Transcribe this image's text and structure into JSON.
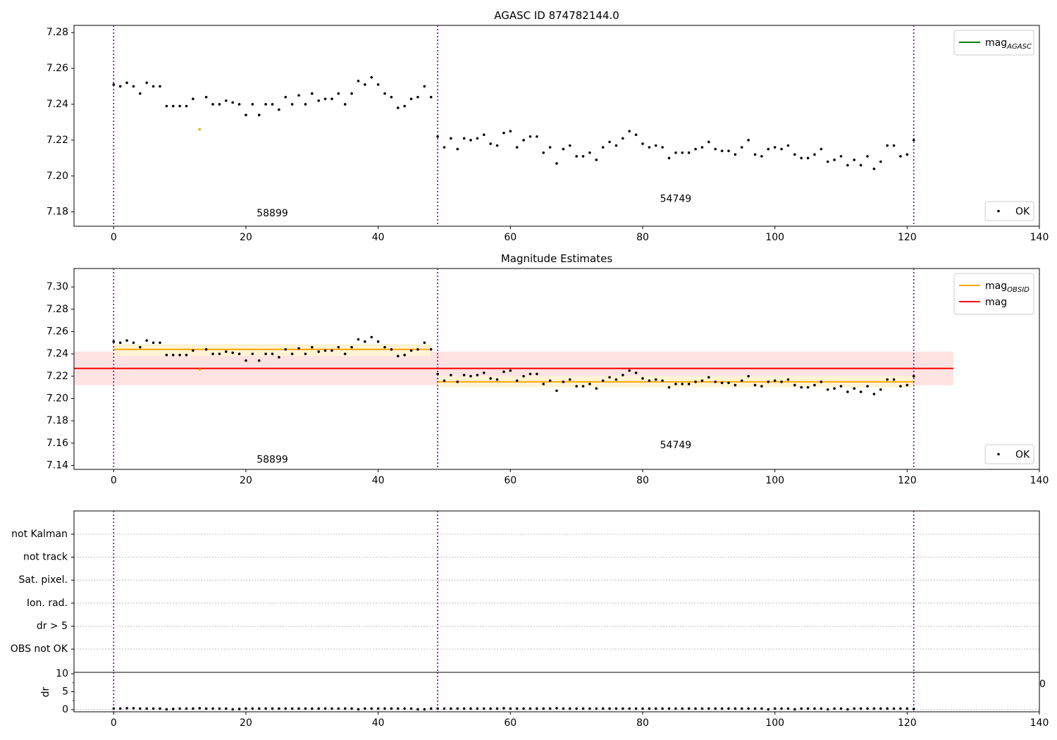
{
  "chart_data": [
    {
      "type": "scatter",
      "title": "AGASC ID 874782144.0",
      "xlim": [
        -6,
        140
      ],
      "ylim": [
        7.172,
        7.284
      ],
      "xticks": [
        "0",
        "20",
        "40",
        "60",
        "80",
        "100",
        "120",
        "140"
      ],
      "yticks": [
        "7.18",
        "7.20",
        "7.22",
        "7.24",
        "7.26",
        "7.28"
      ],
      "vlines": [
        0,
        49,
        121
      ],
      "obsid_labels": [
        {
          "text": "58899",
          "x": 24,
          "y": 7.1775
        },
        {
          "text": "54749",
          "x": 85,
          "y": 7.1855
        }
      ],
      "legend_lines": [
        {
          "base": "mag",
          "sub": "AGASC",
          "color": "#008000"
        }
      ],
      "legend_points": [
        {
          "label": "OK",
          "color": "#000000"
        }
      ],
      "series": [
        {
          "name": "OK",
          "color": "#000000",
          "x": [
            0,
            1,
            2,
            3,
            4,
            5,
            6,
            7,
            8,
            9,
            10,
            11,
            12,
            14,
            15,
            16,
            17,
            18,
            19,
            20,
            21,
            22,
            23,
            24,
            25,
            26,
            27,
            28,
            29,
            30,
            31,
            32,
            33,
            34,
            35,
            36,
            37,
            38,
            39,
            40,
            41,
            42,
            43,
            44,
            45,
            46,
            47,
            48,
            49,
            50,
            51,
            52,
            53,
            54,
            55,
            56,
            57,
            58,
            59,
            60,
            61,
            62,
            63,
            64,
            65,
            66,
            67,
            68,
            69,
            70,
            71,
            72,
            73,
            74,
            75,
            76,
            77,
            78,
            79,
            80,
            81,
            82,
            83,
            84,
            85,
            86,
            87,
            88,
            89,
            90,
            91,
            92,
            93,
            94,
            95,
            96,
            97,
            98,
            99,
            100,
            101,
            102,
            103,
            104,
            105,
            106,
            107,
            108,
            109,
            110,
            111,
            112,
            113,
            114,
            115,
            116,
            117,
            118,
            119,
            120,
            121
          ],
          "y": [
            7.251,
            7.25,
            7.252,
            7.25,
            7.246,
            7.252,
            7.25,
            7.25,
            7.239,
            7.239,
            7.239,
            7.239,
            7.243,
            7.244,
            7.24,
            7.24,
            7.242,
            7.241,
            7.24,
            7.234,
            7.24,
            7.234,
            7.24,
            7.24,
            7.237,
            7.244,
            7.24,
            7.245,
            7.24,
            7.246,
            7.242,
            7.243,
            7.243,
            7.246,
            7.24,
            7.246,
            7.253,
            7.251,
            7.255,
            7.251,
            7.246,
            7.244,
            7.238,
            7.239,
            7.243,
            7.244,
            7.25,
            7.244,
            7.222,
            7.216,
            7.221,
            7.215,
            7.221,
            7.22,
            7.221,
            7.223,
            7.218,
            7.217,
            7.224,
            7.225,
            7.216,
            7.22,
            7.222,
            7.222,
            7.213,
            7.216,
            7.207,
            7.215,
            7.217,
            7.211,
            7.211,
            7.213,
            7.209,
            7.216,
            7.219,
            7.217,
            7.221,
            7.225,
            7.223,
            7.218,
            7.216,
            7.217,
            7.216,
            7.21,
            7.213,
            7.213,
            7.213,
            7.215,
            7.216,
            7.219,
            7.215,
            7.214,
            7.214,
            7.212,
            7.216,
            7.22,
            7.212,
            7.211,
            7.215,
            7.216,
            7.215,
            7.217,
            7.212,
            7.21,
            7.21,
            7.212,
            7.215,
            7.208,
            7.209,
            7.211,
            7.206,
            7.209,
            7.206,
            7.211,
            7.204,
            7.208,
            7.217,
            7.217,
            7.211,
            7.212,
            7.22
          ]
        },
        {
          "name": "",
          "color": "#ffa500",
          "x": [
            13
          ],
          "y": [
            7.226
          ]
        }
      ]
    },
    {
      "type": "scatter",
      "title": "Magnitude Estimates",
      "xlim": [
        -6,
        140
      ],
      "ylim": [
        7.1365,
        7.3165
      ],
      "xticks": [
        "0",
        "20",
        "40",
        "60",
        "80",
        "100",
        "120",
        "140"
      ],
      "yticks": [
        "7.14",
        "7.16",
        "7.18",
        "7.20",
        "7.22",
        "7.24",
        "7.26",
        "7.28",
        "7.30"
      ],
      "vlines": [
        0,
        49,
        121
      ],
      "obsid_labels": [
        {
          "text": "58899",
          "x": 24,
          "y": 7.1425
        },
        {
          "text": "54749",
          "x": 85,
          "y": 7.1555
        }
      ],
      "bands": [
        {
          "x0": -6,
          "x1": 127,
          "y0": 7.212,
          "y1": 7.242,
          "color": "#ffe2e2"
        },
        {
          "x0": 0,
          "x1": 48,
          "y0": 7.238,
          "y1": 7.249,
          "color": "#fff3d6"
        },
        {
          "x0": 49,
          "x1": 121,
          "y0": 7.21,
          "y1": 7.22,
          "color": "#fff3d6"
        }
      ],
      "hlines": [
        {
          "y": 7.227,
          "x0": -6,
          "x1": 127,
          "color": "#ff0000"
        },
        {
          "y": 7.244,
          "x0": 0,
          "x1": 48,
          "color": "#ffa500"
        },
        {
          "y": 7.215,
          "x0": 49,
          "x1": 121,
          "color": "#ffa500"
        }
      ],
      "legend_lines": [
        {
          "base": "mag",
          "sub": "OBSID",
          "color": "#ffa500"
        },
        {
          "base": "mag",
          "sub": "",
          "color": "#ff0000"
        }
      ],
      "legend_points": [
        {
          "label": "OK",
          "color": "#000000"
        }
      ],
      "series": [
        {
          "name": "OK",
          "color": "#000000",
          "same_as_panel": 0
        },
        {
          "name": "",
          "color": "#ffa500",
          "x": [
            13
          ],
          "y": [
            7.226
          ]
        }
      ]
    },
    {
      "type": "scatter",
      "xlim": [
        -6,
        140
      ],
      "categories": [
        "not Kalman",
        "not track",
        "Sat. pixel.",
        "Ion. rad.",
        "dr > 5",
        "OBS not OK"
      ],
      "vlines": [
        0,
        49,
        121
      ],
      "stray_label": "0"
    },
    {
      "type": "scatter",
      "ylabel": "dr",
      "xlim": [
        -6,
        140
      ],
      "ylim": [
        -0.6,
        10.4
      ],
      "xticks": [
        "0",
        "20",
        "40",
        "60",
        "80",
        "100",
        "120",
        "140"
      ],
      "yticks": [
        "0",
        "5",
        "10"
      ],
      "vlines": [
        0,
        49,
        121
      ],
      "series": [
        {
          "name": "dr",
          "color": "#000000",
          "x": [
            0,
            1,
            2,
            3,
            4,
            5,
            6,
            7,
            8,
            9,
            10,
            11,
            12,
            13,
            14,
            15,
            16,
            17,
            18,
            19,
            20,
            21,
            22,
            23,
            24,
            25,
            26,
            27,
            28,
            29,
            30,
            31,
            32,
            33,
            34,
            35,
            36,
            37,
            38,
            39,
            40,
            41,
            42,
            43,
            44,
            45,
            46,
            47,
            48,
            49,
            50,
            51,
            52,
            53,
            54,
            55,
            56,
            57,
            58,
            59,
            60,
            61,
            62,
            63,
            64,
            65,
            66,
            67,
            68,
            69,
            70,
            71,
            72,
            73,
            74,
            75,
            76,
            77,
            78,
            79,
            80,
            81,
            82,
            83,
            84,
            85,
            86,
            87,
            88,
            89,
            90,
            91,
            92,
            93,
            94,
            95,
            96,
            97,
            98,
            99,
            100,
            101,
            102,
            103,
            104,
            105,
            106,
            107,
            108,
            109,
            110,
            111,
            112,
            113,
            114,
            115,
            116,
            117,
            118,
            119,
            120,
            121
          ],
          "y": [
            0.3,
            0.3,
            0.4,
            0.4,
            0.3,
            0.3,
            0.3,
            0.3,
            0.1,
            0.2,
            0.3,
            0.3,
            0.3,
            0.4,
            0.3,
            0.3,
            0.3,
            0.3,
            0.1,
            0.2,
            0.3,
            0.3,
            0.3,
            0.3,
            0.3,
            0.3,
            0.3,
            0.3,
            0.3,
            0.3,
            0.3,
            0.3,
            0.3,
            0.3,
            0.3,
            0.3,
            0.3,
            0.1,
            0.3,
            0.3,
            0.3,
            0.3,
            0.3,
            0.3,
            0.3,
            0.3,
            0.1,
            0.1,
            0.3,
            0.3,
            0.3,
            0.3,
            0.3,
            0.3,
            0.3,
            0.3,
            0.3,
            0.3,
            0.3,
            0.4,
            0.3,
            0.3,
            0.3,
            0.3,
            0.3,
            0.3,
            0.3,
            0.4,
            0.3,
            0.3,
            0.3,
            0.3,
            0.3,
            0.3,
            0.3,
            0.3,
            0.3,
            0.3,
            0.3,
            0.3,
            0.3,
            0.3,
            0.3,
            0.3,
            0.3,
            0.3,
            0.3,
            0.3,
            0.3,
            0.3,
            0.3,
            0.3,
            0.3,
            0.3,
            0.3,
            0.3,
            0.3,
            0.3,
            0.3,
            0.1,
            0.3,
            0.3,
            0.3,
            0.1,
            0.3,
            0.3,
            0.3,
            0.3,
            0.1,
            0.3,
            0.3,
            0.1,
            0.3,
            0.3,
            0.3,
            0.3,
            0.3,
            0.3,
            0.3,
            0.3,
            0.3,
            0.2
          ]
        }
      ]
    }
  ]
}
